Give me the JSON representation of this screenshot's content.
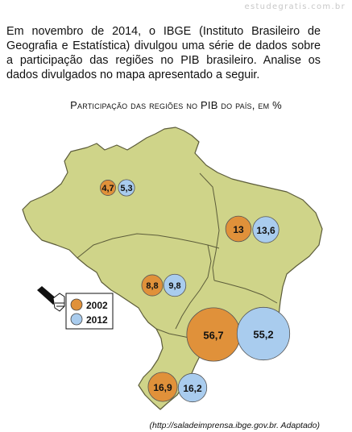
{
  "watermark": "estudegratis.com.br",
  "intro_text": "Em novembro de 2014, o IBGE (Instituto Brasileiro de Geografia e Estatística) divulgou uma série de dados sobre a participação das regiões no PIB brasileiro. Analise os dados divulgados no mapa apresentado a seguir.",
  "source": "(http://saladeimprensa.ibge.gov.br. Adaptado)",
  "legend": [
    {
      "label": "2002",
      "color": "#e0913a",
      "icon": "circle-orange"
    },
    {
      "label": "2012",
      "color": "#a9ccee",
      "icon": "circle-lightblue"
    }
  ],
  "legend_pointer_icon": "pointing-hand-icon",
  "colors": {
    "map_fill": "#cfd489",
    "map_stroke": "#5c5c3a",
    "bubble_2002": "#e0913a",
    "bubble_2012": "#a9ccee"
  },
  "chart_data": {
    "type": "map-bubble",
    "title": "Participação das regiões no PIB do país, em %",
    "series": [
      {
        "name": "2002",
        "values": [
          4.7,
          13,
          8.8,
          56.7,
          16.9
        ]
      },
      {
        "name": "2012",
        "values": [
          5.3,
          13.6,
          9.8,
          55.2,
          16.2
        ]
      }
    ],
    "regions": [
      {
        "id": "norte",
        "y2002": "4,7",
        "y2012": "5,3",
        "v2002": 4.7,
        "v2012": 5.3
      },
      {
        "id": "nordeste",
        "y2002": "13",
        "y2012": "13,6",
        "v2002": 13,
        "v2012": 13.6
      },
      {
        "id": "centro-oeste",
        "y2002": "8,8",
        "y2012": "9,8",
        "v2002": 8.8,
        "v2012": 9.8
      },
      {
        "id": "sudeste",
        "y2002": "56,7",
        "y2012": "55,2",
        "v2002": 56.7,
        "v2012": 55.2
      },
      {
        "id": "sul",
        "y2002": "16,9",
        "y2012": "16,2",
        "v2002": 16.9,
        "v2012": 16.2
      }
    ]
  }
}
